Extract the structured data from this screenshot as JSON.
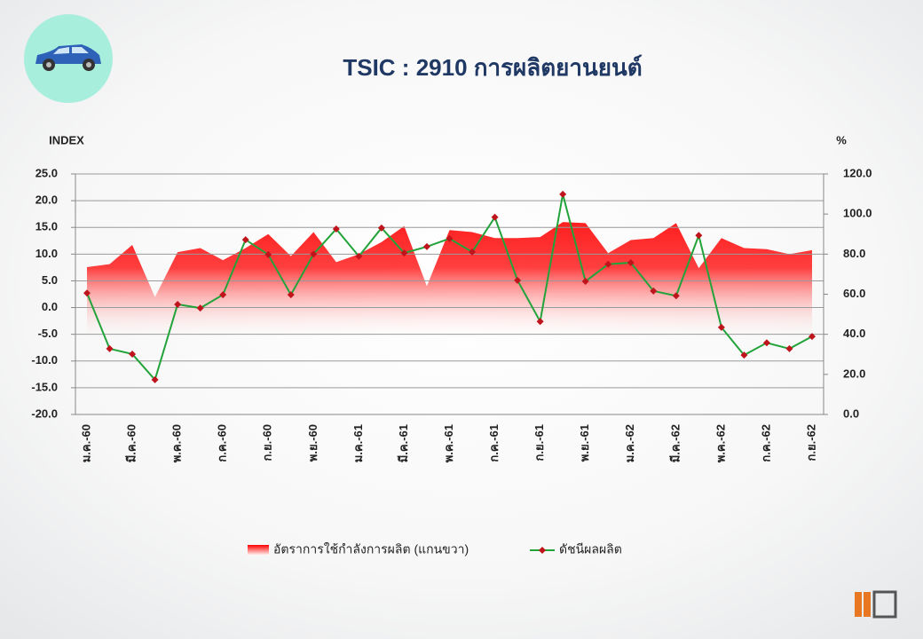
{
  "chart_data": {
    "type": "area-line",
    "title": "TSIC : 2910 การผลิตยานยนต์",
    "y_axis_label": "INDEX",
    "y2_axis_label": "%",
    "categories": [
      "ม.ค.-60",
      null,
      "มี.ค.-60",
      null,
      "พ.ค.-60",
      null,
      "ก.ค.-60",
      null,
      "ก.ย.-60",
      null,
      "พ.ย.-60",
      null,
      "ม.ค.-61",
      null,
      "มี.ค.-61",
      null,
      "พ.ค.-61",
      null,
      "ก.ค.-61",
      null,
      "ก.ย.-61",
      null,
      "พ.ย.-61",
      null,
      "ม.ค.-62",
      null,
      "มี.ค.-62",
      null,
      "พ.ค.-62",
      null,
      "ก.ค.-62",
      null,
      "ก.ย.-62"
    ],
    "series": [
      {
        "name": "อัตราการใช้กำลังการผลิต (แกนขวา)",
        "type": "area",
        "axis": "y2",
        "color": "#ff0000",
        "values": [
          73.5,
          75,
          84.6,
          58.5,
          81,
          83,
          77,
          83,
          90,
          79,
          91,
          76,
          80,
          86,
          94,
          64,
          92,
          91,
          88,
          88,
          88.5,
          96,
          95.5,
          80.5,
          87,
          88,
          95.5,
          73,
          88,
          83,
          82.5,
          80,
          82
        ]
      },
      {
        "name": "ดัชนีผลผลิต",
        "type": "line",
        "color": "#22a33a",
        "marker_color": "#c0141c",
        "values": [
          2.7,
          -7.7,
          -8.7,
          -13.5,
          0.6,
          -0.1,
          2.4,
          12.7,
          9.9,
          2.4,
          10.0,
          14.7,
          9.6,
          14.9,
          10.2,
          11.4,
          12.9,
          10.4,
          16.9,
          5.1,
          -2.6,
          21.2,
          4.9,
          8.1,
          8.4,
          3.1,
          2.2,
          13.5,
          -3.7,
          -8.9,
          -6.6,
          -7.7,
          -5.4
        ]
      }
    ],
    "ylim": [
      -20,
      25
    ],
    "yticks": [
      {
        "value": 25,
        "label": "25.0"
      },
      {
        "value": 20,
        "label": "20.0"
      },
      {
        "value": 15,
        "label": "15.0"
      },
      {
        "value": 10,
        "label": "10.0"
      },
      {
        "value": 5,
        "label": "5.0"
      },
      {
        "value": 0,
        "label": "0.0"
      },
      {
        "value": -5,
        "label": "-5.0"
      },
      {
        "value": -10,
        "label": "-10.0"
      },
      {
        "value": -15,
        "label": "-15.0"
      },
      {
        "value": -20,
        "label": "-20.0"
      }
    ],
    "y2lim": [
      0,
      120
    ],
    "y2ticks": [
      {
        "value": 120,
        "label": "120.0"
      },
      {
        "value": 100,
        "label": "100.0"
      },
      {
        "value": 80,
        "label": "80.0"
      },
      {
        "value": 60,
        "label": "60.0"
      },
      {
        "value": 40,
        "label": "40.0"
      },
      {
        "value": 20,
        "label": "20.0"
      },
      {
        "value": 0,
        "label": "0.0"
      }
    ],
    "grid": true,
    "legend": "bottom"
  }
}
